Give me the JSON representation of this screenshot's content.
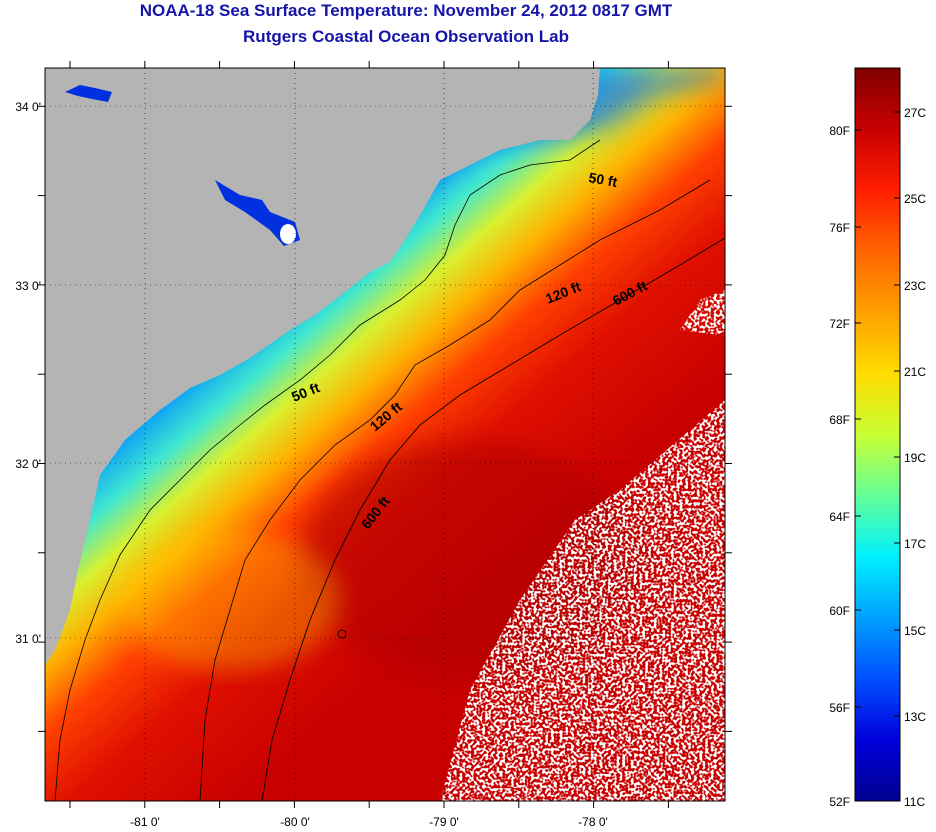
{
  "header": {
    "title": "NOAA-18 Sea Surface Temperature:  November 24, 2012 0817 GMT",
    "subtitle": "Rutgers Coastal Ocean Observation Lab"
  },
  "map": {
    "lon_ticks": [
      "-81 0'",
      "-80 0'",
      "-79 0'",
      "-78 0'"
    ],
    "lat_ticks": [
      "34 0'",
      "33 0'",
      "32 0'",
      "31 0'"
    ],
    "land_color": "#b4b4b4",
    "cloud_color": "#ffffff",
    "contours": [
      {
        "depth": "50 ft"
      },
      {
        "depth": "50 ft"
      },
      {
        "depth": "120 ft"
      },
      {
        "depth": "120 ft"
      },
      {
        "depth": "600 ft"
      },
      {
        "depth": "600 ft"
      }
    ]
  },
  "colorbar": {
    "fahrenheit": [
      "80F",
      "76F",
      "72F",
      "68F",
      "64F",
      "60F",
      "56F",
      "52F"
    ],
    "celsius": [
      "27C",
      "25C",
      "23C",
      "21C",
      "19C",
      "17C",
      "15C",
      "13C",
      "11C"
    ],
    "colors": [
      "#800000",
      "#c80000",
      "#ff1e00",
      "#ff6400",
      "#ffa000",
      "#ffdc00",
      "#c8ff32",
      "#64ff96",
      "#00f0ff",
      "#00a0ff",
      "#0050ff",
      "#0000dc",
      "#000090"
    ]
  }
}
